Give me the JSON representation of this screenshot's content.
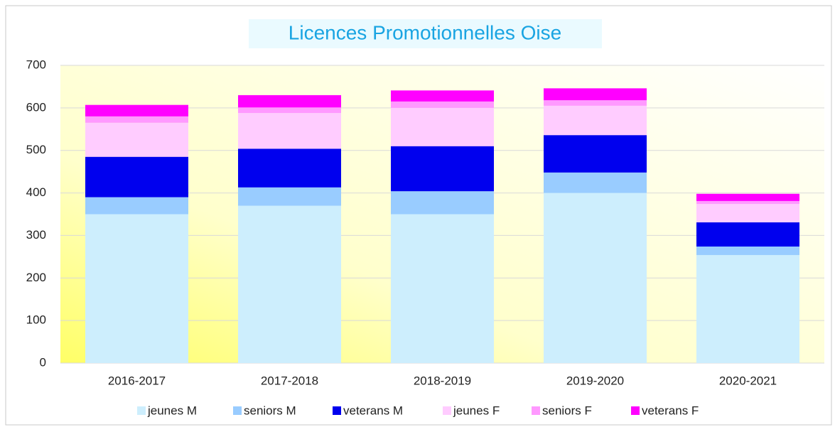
{
  "chart_data": {
    "type": "stacked_bar",
    "title": "Licences Promotionnelles Oise",
    "categories": [
      "2016-2017",
      "2017-2018",
      "2018-2019",
      "2019-2020",
      "2020-2021"
    ],
    "series": [
      {
        "name": "jeunes M",
        "color": "#cdeefd",
        "values": [
          350,
          370,
          350,
          400,
          254
        ]
      },
      {
        "name": "seniors M",
        "color": "#99ccff",
        "values": [
          40,
          43,
          54,
          48,
          20
        ]
      },
      {
        "name": "veterans M",
        "color": "#0000ee",
        "values": [
          95,
          91,
          106,
          88,
          57
        ]
      },
      {
        "name": "jeunes F",
        "color": "#ffccff",
        "values": [
          80,
          84,
          90,
          69,
          43
        ]
      },
      {
        "name": "seniors F",
        "color": "#ff99ff",
        "values": [
          15,
          13,
          15,
          13,
          7
        ]
      },
      {
        "name": "veterans F",
        "color": "#ff00ff",
        "values": [
          27,
          29,
          26,
          28,
          17
        ]
      }
    ],
    "ylim": [
      0,
      700
    ],
    "yticks": [
      0,
      100,
      200,
      300,
      400,
      500,
      600,
      700
    ],
    "grid": true,
    "legend": "bottom"
  }
}
